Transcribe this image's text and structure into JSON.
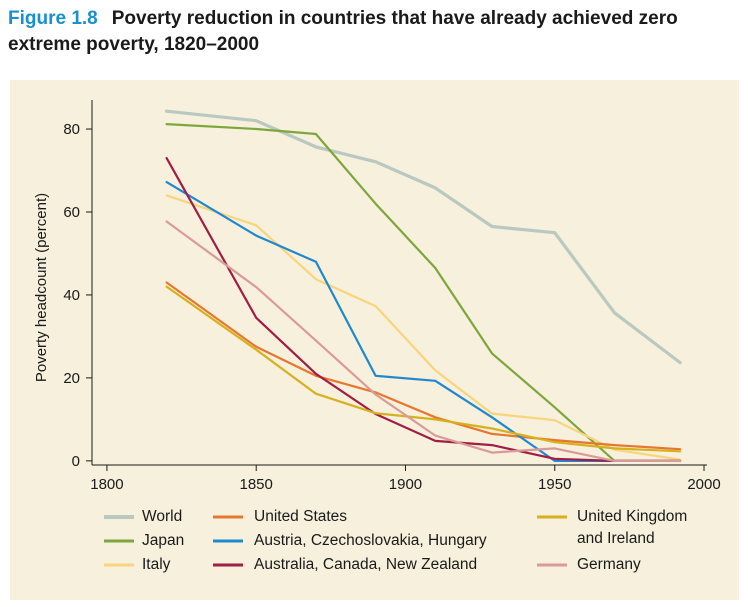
{
  "figure": {
    "label": "Figure 1.8",
    "title_line1": "Poverty reduction in countries that have already achieved zero",
    "title_line2": "extreme poverty, 1820–2000"
  },
  "chart_data": {
    "type": "line",
    "title": "Poverty reduction in countries that have already achieved zero extreme poverty, 1820–2000",
    "xlabel": "",
    "ylabel": "Poverty headcount (percent)",
    "xlim": [
      1795,
      2001
    ],
    "ylim": [
      -1,
      87
    ],
    "xticks": [
      1800,
      1850,
      1900,
      1950,
      2000
    ],
    "yticks": [
      0,
      20,
      40,
      60,
      80
    ],
    "grid": false,
    "legend_position": "bottom",
    "series": [
      {
        "name": "World",
        "color": "#b9c8c1",
        "x": [
          1820,
          1850,
          1870,
          1890,
          1910,
          1929,
          1950,
          1970,
          1992
        ],
        "y": [
          84.3,
          82.0,
          75.7,
          72.1,
          65.8,
          56.5,
          55.0,
          35.7,
          23.7
        ]
      },
      {
        "name": "Japan",
        "color": "#7ea63c",
        "x": [
          1820,
          1850,
          1870,
          1890,
          1910,
          1929,
          1950,
          1970,
          1992
        ],
        "y": [
          81.2,
          80.0,
          78.8,
          62.0,
          46.5,
          25.9,
          12.9,
          0,
          0
        ]
      },
      {
        "name": "Italy",
        "color": "#f8d57c",
        "x": [
          1820,
          1850,
          1870,
          1890,
          1910,
          1929,
          1950,
          1970,
          1992
        ],
        "y": [
          64.0,
          56.8,
          43.8,
          37.3,
          21.8,
          11.4,
          9.8,
          2.7,
          0.3
        ]
      },
      {
        "name": "United States",
        "color": "#e8772e",
        "x": [
          1820,
          1850,
          1870,
          1890,
          1910,
          1929,
          1950,
          1970,
          1992
        ],
        "y": [
          43.0,
          27.5,
          20.5,
          16.5,
          10.5,
          6.5,
          5.0,
          3.8,
          2.8
        ]
      },
      {
        "name": "Austria, Czechoslovakia, Hungary",
        "color": "#1f88cf",
        "x": [
          1820,
          1850,
          1870,
          1890,
          1910,
          1929,
          1950,
          1970,
          1992
        ],
        "y": [
          67.2,
          54.3,
          48.0,
          20.5,
          19.3,
          10.5,
          0,
          0,
          0
        ]
      },
      {
        "name": "Australia, Canada, New Zealand",
        "color": "#a21d45",
        "x": [
          1820,
          1850,
          1870,
          1890,
          1910,
          1929,
          1950,
          1970,
          1992
        ],
        "y": [
          73.0,
          34.5,
          21.0,
          11.3,
          4.8,
          3.8,
          0.5,
          0,
          0
        ]
      },
      {
        "name": "United Kingdom and Ireland",
        "color": "#d7b01e",
        "x": [
          1820,
          1850,
          1870,
          1890,
          1910,
          1929,
          1950,
          1970,
          1992
        ],
        "y": [
          42.0,
          26.8,
          16.2,
          11.5,
          10.0,
          7.8,
          4.5,
          3.0,
          2.3
        ]
      },
      {
        "name": "Germany",
        "color": "#d99b97",
        "x": [
          1820,
          1850,
          1870,
          1890,
          1910,
          1929,
          1950,
          1970,
          1992
        ],
        "y": [
          57.7,
          41.9,
          29.0,
          16.0,
          6.1,
          2.0,
          3.0,
          0,
          0
        ]
      }
    ],
    "legend": [
      {
        "series": 0,
        "label_lines": [
          "World"
        ]
      },
      {
        "series": 1,
        "label_lines": [
          "Japan"
        ]
      },
      {
        "series": 2,
        "label_lines": [
          "Italy"
        ]
      },
      {
        "series": 3,
        "label_lines": [
          "United States"
        ]
      },
      {
        "series": 4,
        "label_lines": [
          "Austria, Czechoslovakia, Hungary"
        ]
      },
      {
        "series": 5,
        "label_lines": [
          "Australia, Canada, New Zealand"
        ]
      },
      {
        "series": 6,
        "label_lines": [
          "United Kingdom",
          "and Ireland"
        ]
      },
      {
        "series": 7,
        "label_lines": [
          "Germany"
        ]
      }
    ]
  }
}
